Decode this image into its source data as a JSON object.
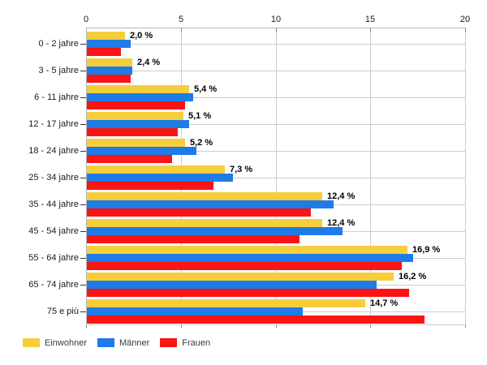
{
  "chart_data": {
    "type": "bar",
    "orientation": "horizontal",
    "title": "",
    "xlabel": "",
    "ylabel": "",
    "xlim": [
      0,
      20
    ],
    "x_ticks": [
      0,
      5,
      10,
      15,
      20
    ],
    "x_tick_labels": [
      "0",
      "5",
      "10",
      "15",
      "20"
    ],
    "grid": true,
    "legend_position": "bottom",
    "categories": [
      "0 - 2 jahre",
      "3 - 5 jahre",
      "6 - 11 jahre",
      "12 - 17 jahre",
      "18 - 24 jahre",
      "25 - 34 jahre",
      "35 - 44 jahre",
      "45 - 54 jahre",
      "55 - 64 jahre",
      "65 - 74 jahre",
      "75 e più"
    ],
    "series": [
      {
        "key": "einwohner",
        "name": "Einwohner",
        "color": "#F6CE3C",
        "values": [
          2.0,
          2.4,
          5.4,
          5.1,
          5.2,
          7.3,
          12.4,
          12.4,
          16.9,
          16.2,
          14.7
        ]
      },
      {
        "key": "maenner",
        "name": "Männer",
        "color": "#1E7BE8",
        "values": [
          2.3,
          2.4,
          5.6,
          5.4,
          5.8,
          7.7,
          13.0,
          13.5,
          17.2,
          15.3,
          11.4
        ]
      },
      {
        "key": "frauen",
        "name": "Frauen",
        "color": "#FA1414",
        "values": [
          1.8,
          2.3,
          5.2,
          4.8,
          4.5,
          6.7,
          11.8,
          11.2,
          16.6,
          17.0,
          17.8
        ]
      }
    ],
    "value_labels": [
      "2,0 %",
      "2,4 %",
      "5,4 %",
      "5,1 %",
      "5,2 %",
      "7,3 %",
      "12,4 %",
      "12,4 %",
      "16,9 %",
      "16,2 %",
      "14,7 %"
    ],
    "value_labels_series": "Einwohner"
  },
  "style": {
    "background": "#ffffff",
    "grid_color": "#cccccc",
    "axis_line_color": "#b8b8b8",
    "tick_color": "#878787",
    "category_tick_color": "#333333",
    "axis_text_color": "#1a1a1a",
    "value_label_color": "#000000",
    "legend_text_color": "#3a3a3a"
  }
}
